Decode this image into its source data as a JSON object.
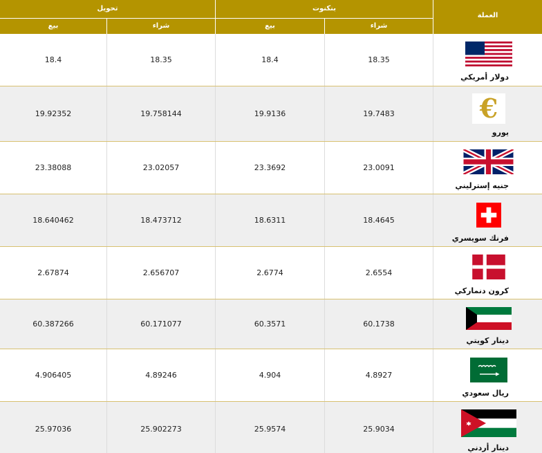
{
  "header": {
    "group_transfer": "تحويل",
    "group_banknote": "بنكنوت",
    "currency": "العملة",
    "sell": "بيع",
    "buy": "شراء"
  },
  "rows": [
    {
      "name": "دولار أمريكي",
      "transfer_sell": "18.4",
      "transfer_buy": "18.35",
      "bank_sell": "18.4",
      "bank_buy": "18.35",
      "flag": "us-flag-icon"
    },
    {
      "name": "يورو",
      "transfer_sell": "19.92352",
      "transfer_buy": "19.758144",
      "bank_sell": "19.9136",
      "bank_buy": "19.7483",
      "flag": "euro-icon"
    },
    {
      "name": "جنيه إسترليني",
      "transfer_sell": "23.38088",
      "transfer_buy": "23.02057",
      "bank_sell": "23.3692",
      "bank_buy": "23.0091",
      "flag": "uk-flag-icon"
    },
    {
      "name": "فرنك سويسري",
      "transfer_sell": "18.640462",
      "transfer_buy": "18.473712",
      "bank_sell": "18.6311",
      "bank_buy": "18.4645",
      "flag": "swiss-flag-icon"
    },
    {
      "name": "كرون دنماركي",
      "transfer_sell": "2.67874",
      "transfer_buy": "2.656707",
      "bank_sell": "2.6774",
      "bank_buy": "2.6554",
      "flag": "danish-flag-icon"
    },
    {
      "name": "دينار كويتي",
      "transfer_sell": "60.387266",
      "transfer_buy": "60.171077",
      "bank_sell": "60.3571",
      "bank_buy": "60.1738",
      "flag": "kuwait-flag-icon"
    },
    {
      "name": "ريال سعودي",
      "transfer_sell": "4.906405",
      "transfer_buy": "4.89246",
      "bank_sell": "4.904",
      "bank_buy": "4.8927",
      "flag": "saudi-flag-icon"
    },
    {
      "name": "دينار أردني",
      "transfer_sell": "25.97036",
      "transfer_buy": "25.902273",
      "bank_sell": "25.9574",
      "bank_buy": "25.9034",
      "flag": "jordan-flag-icon"
    }
  ],
  "colors": {
    "header_bg": "#b49400",
    "row_alt": "#efefef",
    "row_border": "#d8c070"
  }
}
